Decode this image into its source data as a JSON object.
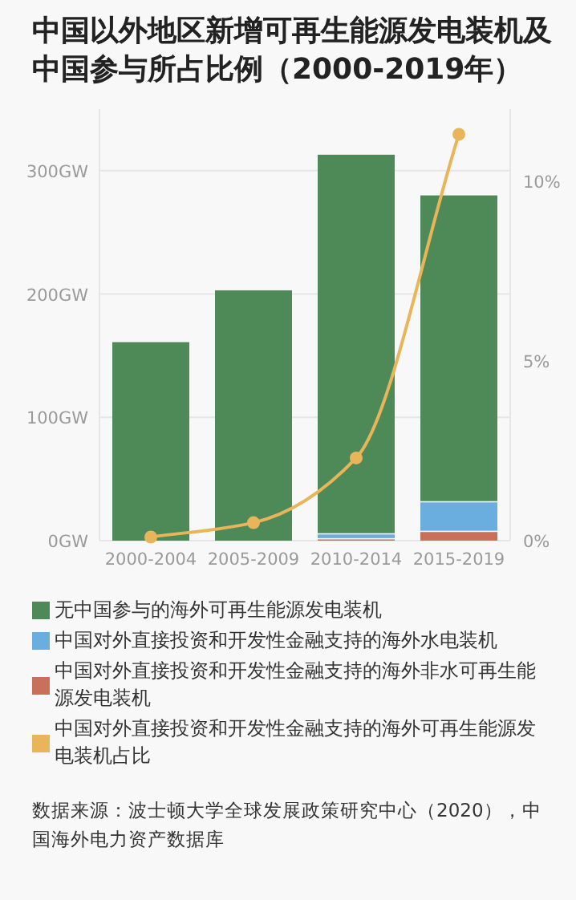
{
  "chart_data": {
    "type": "bar",
    "title": "中国以外地区新增可再生能源发电装机及中国参与所占比例（2000-2019年）",
    "categories": [
      "2000-2004",
      "2005-2009",
      "2010-2014",
      "2015-2019"
    ],
    "stacked": true,
    "series": [
      {
        "name": "中国对外直接投资和开发性金融支持的海外非水可再生能源发电装机",
        "color": "#c8705a",
        "values": [
          null,
          null,
          1,
          7
        ]
      },
      {
        "name": "中国对外直接投资和开发性金融支持的海外水电装机",
        "color": "#6aaee0",
        "values": [
          null,
          null,
          4,
          24
        ]
      },
      {
        "name": "无中国参与的海外可再生能源发电装机",
        "color": "#4e8a57",
        "values": [
          161,
          203,
          308,
          249
        ]
      },
      {
        "name": "中国对外直接投资和开发性金融支持的海外可再生能源发电装机占比",
        "type": "line",
        "axis": "y2",
        "marker": "circle",
        "color": "#e8b55a",
        "values": [
          0.1,
          0.5,
          2.3,
          11.3
        ]
      }
    ],
    "ylim": [
      0,
      350
    ],
    "yticks": [
      {
        "value": 0,
        "label": "0GW"
      },
      {
        "value": 100,
        "label": "100GW"
      },
      {
        "value": 200,
        "label": "200GW"
      },
      {
        "value": 300,
        "label": "300GW"
      }
    ],
    "y2lim": [
      0,
      12
    ],
    "y2ticks": [
      {
        "value": 0,
        "label": "0%"
      },
      {
        "value": 5,
        "label": "5%"
      },
      {
        "value": 10,
        "label": "10%"
      }
    ],
    "grid": "y",
    "legend": "bottom",
    "annotations": [
      "数据来源：波士顿大学全球发展政策研究中心（2020），中国海外电力资产数据库"
    ]
  }
}
